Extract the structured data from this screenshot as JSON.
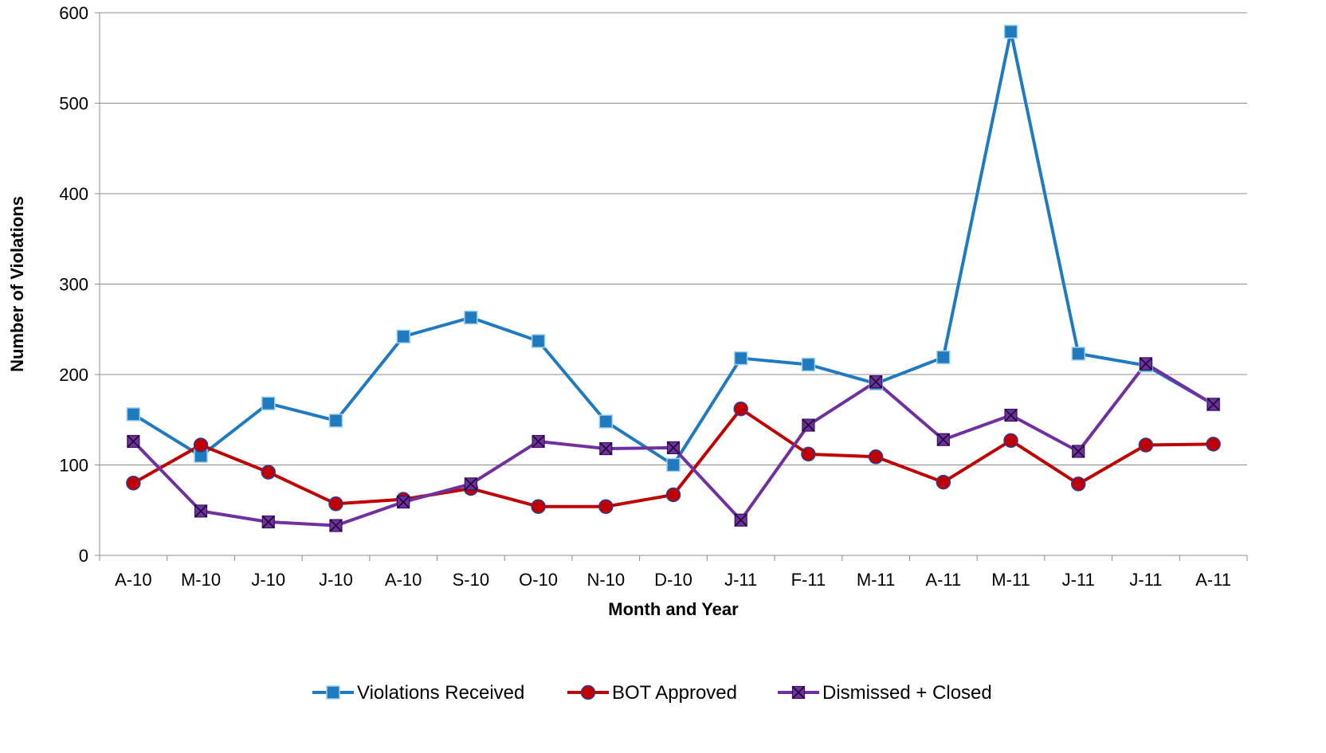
{
  "chart_data": {
    "type": "line",
    "title": "",
    "xlabel": "Month and Year",
    "ylabel": "Number of Violations",
    "ylim": [
      0,
      600
    ],
    "yticks": [
      0,
      100,
      200,
      300,
      400,
      500,
      600
    ],
    "grid": "horizontal",
    "legend_position": "bottom",
    "categories": [
      "A-10",
      "M-10",
      "J-10",
      "J-10",
      "A-10",
      "S-10",
      "O-10",
      "N-10",
      "D-10",
      "J-11",
      "F-11",
      "M-11",
      "A-11",
      "M-11",
      "J-11",
      "J-11",
      "A-11"
    ],
    "series": [
      {
        "name": "Violations Received",
        "color": "#1F7AC0",
        "marker": "square",
        "values": [
          156,
          110,
          168,
          149,
          242,
          263,
          237,
          148,
          100,
          218,
          211,
          190,
          219,
          579,
          223,
          210,
          167
        ]
      },
      {
        "name": "BOT Approved",
        "color": "#C00000",
        "marker": "circle",
        "values": [
          80,
          122,
          92,
          57,
          62,
          74,
          54,
          54,
          67,
          162,
          112,
          109,
          81,
          127,
          79,
          122,
          123
        ]
      },
      {
        "name": "Dismissed + Closed",
        "color": "#7030A0",
        "marker": "x-square",
        "values": [
          126,
          49,
          37,
          33,
          59,
          79,
          126,
          118,
          119,
          39,
          144,
          192,
          128,
          155,
          115,
          212,
          167
        ]
      }
    ]
  }
}
